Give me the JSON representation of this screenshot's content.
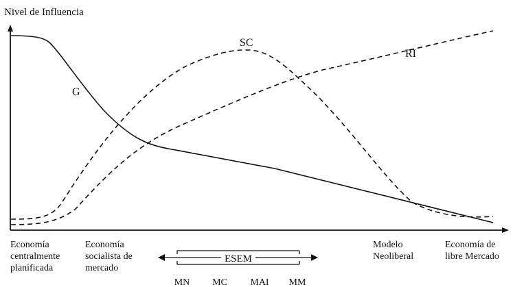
{
  "diagram": {
    "y_axis_label": "Nivel de Influencia",
    "curves": [
      {
        "label": "G",
        "style": "solid"
      },
      {
        "label": "SC",
        "style": "dashed"
      },
      {
        "label": "RI",
        "style": "dashed"
      }
    ],
    "x_categories": [
      {
        "lines": [
          "Economía",
          "centralmente",
          "planificada"
        ]
      },
      {
        "lines": [
          "Economía",
          "socialista de",
          "mercado"
        ]
      },
      {
        "lines": [
          "Modelo",
          "Neoliberal"
        ]
      },
      {
        "lines": [
          "Economía de",
          "libre Mercado"
        ]
      }
    ],
    "esem": {
      "label": "ESEM",
      "sub_labels": [
        "MN",
        "MC",
        "MAI",
        "MM"
      ]
    }
  },
  "colors": {
    "ink": "#111111",
    "background": "#ffffff"
  }
}
